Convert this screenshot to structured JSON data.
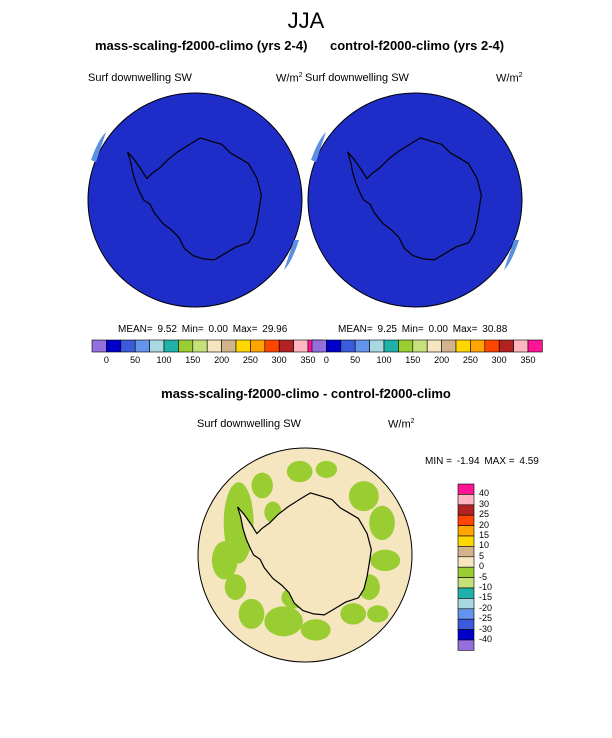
{
  "figure": {
    "title": "JJA"
  },
  "panels": [
    {
      "title": "mass-scaling-f2000-climo (yrs 2-4)",
      "variable": "Surf downwelling SW",
      "unit_base": "W/m",
      "unit_exp": "2",
      "mean_label": "MEAN=",
      "mean": "9.52",
      "min_label": "Min=",
      "min": "0.00",
      "max_label": "Max=",
      "max": "29.96"
    },
    {
      "title": "control-f2000-climo (yrs 2-4)",
      "variable": "Surf downwelling SW",
      "unit_base": "W/m",
      "unit_exp": "2",
      "mean_label": "MEAN=",
      "mean": "9.25",
      "min_label": "Min=",
      "min": "0.00",
      "max_label": "Max=",
      "max": "30.88"
    }
  ],
  "diff_panel": {
    "title": "mass-scaling-f2000-climo - control-f2000-climo",
    "variable": "Surf downwelling SW",
    "unit_base": "W/m",
    "unit_exp": "2",
    "min_label": "MIN =",
    "min": "-1.94",
    "max_label": "MAX =",
    "max": "4.59"
  },
  "colorbar_abs": {
    "colors": [
      "#9370DB",
      "#0000CD",
      "#3B5BDB",
      "#6495ED",
      "#A8D8E0",
      "#20B2AA",
      "#9ACD32",
      "#C5E17A",
      "#F5E6C0",
      "#D2B48C",
      "#FFD700",
      "#FFA500",
      "#FF4500",
      "#B22222",
      "#FFB6C1",
      "#FF1493"
    ],
    "tick_labels": [
      "0",
      "50",
      "100",
      "150",
      "200",
      "250",
      "300",
      "350"
    ]
  },
  "colorbar_diff": {
    "colors": [
      "#FF1493",
      "#FFB6C1",
      "#B22222",
      "#FF4500",
      "#FFA500",
      "#FFD700",
      "#D2B48C",
      "#F5E6C0",
      "#9ACD32",
      "#C5E17A",
      "#20B2AA",
      "#A8D8E0",
      "#6495ED",
      "#3B5BDB",
      "#0000CD",
      "#9370DB"
    ],
    "tick_labels": [
      "40",
      "30",
      "25",
      "20",
      "15",
      "10",
      "5",
      "0",
      "-5",
      "-10",
      "-15",
      "-20",
      "-25",
      "-30",
      "-40"
    ]
  },
  "map_colors": {
    "abs_fill": "#1E2DC8",
    "abs_edge": "#5B8FE0",
    "diff_fill": "#F5E6C0",
    "diff_pos": "#9ACD32",
    "coast": "#000000"
  }
}
